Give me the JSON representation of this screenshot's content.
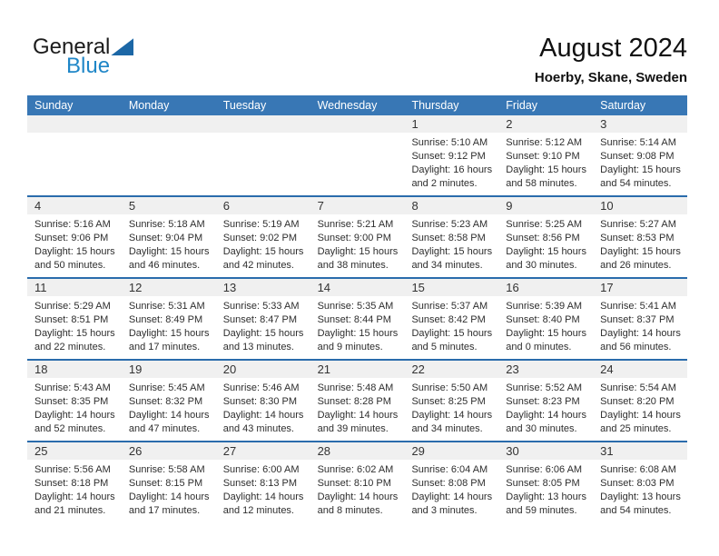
{
  "logo": {
    "general": "General",
    "blue": "Blue"
  },
  "header": {
    "title": "August 2024",
    "subtitle": "Hoerby, Skane, Sweden"
  },
  "weekdays": [
    "Sunday",
    "Monday",
    "Tuesday",
    "Wednesday",
    "Thursday",
    "Friday",
    "Saturday"
  ],
  "colors": {
    "header_blue": "#3877b5",
    "row_border_blue": "#2a6cac",
    "day_band_gray": "#f0f0f0",
    "logo_triangle_blue": "#1c67a6",
    "logo_text_blue": "#1f86c7"
  },
  "weeks": [
    [
      null,
      null,
      null,
      null,
      {
        "day": "1",
        "lines": [
          "Sunrise: 5:10 AM",
          "Sunset: 9:12 PM",
          "Daylight: 16 hours",
          "and 2 minutes."
        ]
      },
      {
        "day": "2",
        "lines": [
          "Sunrise: 5:12 AM",
          "Sunset: 9:10 PM",
          "Daylight: 15 hours",
          "and 58 minutes."
        ]
      },
      {
        "day": "3",
        "lines": [
          "Sunrise: 5:14 AM",
          "Sunset: 9:08 PM",
          "Daylight: 15 hours",
          "and 54 minutes."
        ]
      }
    ],
    [
      {
        "day": "4",
        "lines": [
          "Sunrise: 5:16 AM",
          "Sunset: 9:06 PM",
          "Daylight: 15 hours",
          "and 50 minutes."
        ]
      },
      {
        "day": "5",
        "lines": [
          "Sunrise: 5:18 AM",
          "Sunset: 9:04 PM",
          "Daylight: 15 hours",
          "and 46 minutes."
        ]
      },
      {
        "day": "6",
        "lines": [
          "Sunrise: 5:19 AM",
          "Sunset: 9:02 PM",
          "Daylight: 15 hours",
          "and 42 minutes."
        ]
      },
      {
        "day": "7",
        "lines": [
          "Sunrise: 5:21 AM",
          "Sunset: 9:00 PM",
          "Daylight: 15 hours",
          "and 38 minutes."
        ]
      },
      {
        "day": "8",
        "lines": [
          "Sunrise: 5:23 AM",
          "Sunset: 8:58 PM",
          "Daylight: 15 hours",
          "and 34 minutes."
        ]
      },
      {
        "day": "9",
        "lines": [
          "Sunrise: 5:25 AM",
          "Sunset: 8:56 PM",
          "Daylight: 15 hours",
          "and 30 minutes."
        ]
      },
      {
        "day": "10",
        "lines": [
          "Sunrise: 5:27 AM",
          "Sunset: 8:53 PM",
          "Daylight: 15 hours",
          "and 26 minutes."
        ]
      }
    ],
    [
      {
        "day": "11",
        "lines": [
          "Sunrise: 5:29 AM",
          "Sunset: 8:51 PM",
          "Daylight: 15 hours",
          "and 22 minutes."
        ]
      },
      {
        "day": "12",
        "lines": [
          "Sunrise: 5:31 AM",
          "Sunset: 8:49 PM",
          "Daylight: 15 hours",
          "and 17 minutes."
        ]
      },
      {
        "day": "13",
        "lines": [
          "Sunrise: 5:33 AM",
          "Sunset: 8:47 PM",
          "Daylight: 15 hours",
          "and 13 minutes."
        ]
      },
      {
        "day": "14",
        "lines": [
          "Sunrise: 5:35 AM",
          "Sunset: 8:44 PM",
          "Daylight: 15 hours",
          "and 9 minutes."
        ]
      },
      {
        "day": "15",
        "lines": [
          "Sunrise: 5:37 AM",
          "Sunset: 8:42 PM",
          "Daylight: 15 hours",
          "and 5 minutes."
        ]
      },
      {
        "day": "16",
        "lines": [
          "Sunrise: 5:39 AM",
          "Sunset: 8:40 PM",
          "Daylight: 15 hours",
          "and 0 minutes."
        ]
      },
      {
        "day": "17",
        "lines": [
          "Sunrise: 5:41 AM",
          "Sunset: 8:37 PM",
          "Daylight: 14 hours",
          "and 56 minutes."
        ]
      }
    ],
    [
      {
        "day": "18",
        "lines": [
          "Sunrise: 5:43 AM",
          "Sunset: 8:35 PM",
          "Daylight: 14 hours",
          "and 52 minutes."
        ]
      },
      {
        "day": "19",
        "lines": [
          "Sunrise: 5:45 AM",
          "Sunset: 8:32 PM",
          "Daylight: 14 hours",
          "and 47 minutes."
        ]
      },
      {
        "day": "20",
        "lines": [
          "Sunrise: 5:46 AM",
          "Sunset: 8:30 PM",
          "Daylight: 14 hours",
          "and 43 minutes."
        ]
      },
      {
        "day": "21",
        "lines": [
          "Sunrise: 5:48 AM",
          "Sunset: 8:28 PM",
          "Daylight: 14 hours",
          "and 39 minutes."
        ]
      },
      {
        "day": "22",
        "lines": [
          "Sunrise: 5:50 AM",
          "Sunset: 8:25 PM",
          "Daylight: 14 hours",
          "and 34 minutes."
        ]
      },
      {
        "day": "23",
        "lines": [
          "Sunrise: 5:52 AM",
          "Sunset: 8:23 PM",
          "Daylight: 14 hours",
          "and 30 minutes."
        ]
      },
      {
        "day": "24",
        "lines": [
          "Sunrise: 5:54 AM",
          "Sunset: 8:20 PM",
          "Daylight: 14 hours",
          "and 25 minutes."
        ]
      }
    ],
    [
      {
        "day": "25",
        "lines": [
          "Sunrise: 5:56 AM",
          "Sunset: 8:18 PM",
          "Daylight: 14 hours",
          "and 21 minutes."
        ]
      },
      {
        "day": "26",
        "lines": [
          "Sunrise: 5:58 AM",
          "Sunset: 8:15 PM",
          "Daylight: 14 hours",
          "and 17 minutes."
        ]
      },
      {
        "day": "27",
        "lines": [
          "Sunrise: 6:00 AM",
          "Sunset: 8:13 PM",
          "Daylight: 14 hours",
          "and 12 minutes."
        ]
      },
      {
        "day": "28",
        "lines": [
          "Sunrise: 6:02 AM",
          "Sunset: 8:10 PM",
          "Daylight: 14 hours",
          "and 8 minutes."
        ]
      },
      {
        "day": "29",
        "lines": [
          "Sunrise: 6:04 AM",
          "Sunset: 8:08 PM",
          "Daylight: 14 hours",
          "and 3 minutes."
        ]
      },
      {
        "day": "30",
        "lines": [
          "Sunrise: 6:06 AM",
          "Sunset: 8:05 PM",
          "Daylight: 13 hours",
          "and 59 minutes."
        ]
      },
      {
        "day": "31",
        "lines": [
          "Sunrise: 6:08 AM",
          "Sunset: 8:03 PM",
          "Daylight: 13 hours",
          "and 54 minutes."
        ]
      }
    ]
  ]
}
